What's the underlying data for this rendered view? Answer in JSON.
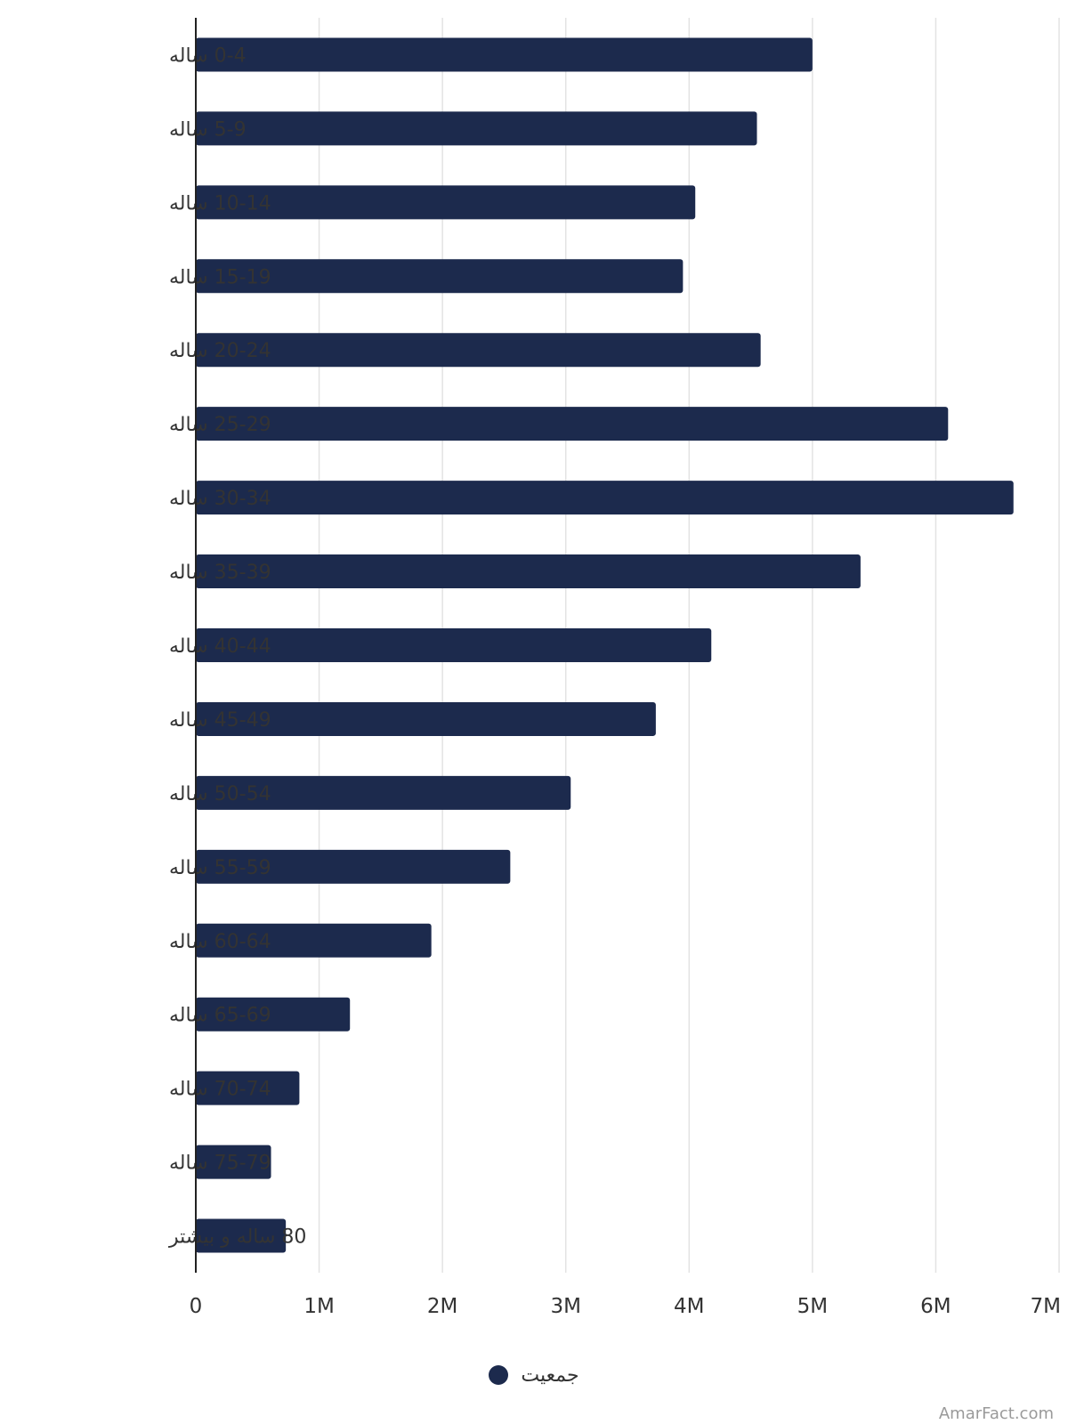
{
  "colors": {
    "bar": "#1c2a4d",
    "grid": "#e3e3e3",
    "axis": "#222222"
  },
  "chart_data": {
    "type": "bar",
    "orientation": "horizontal",
    "categories": [
      "0-4 ساله",
      "5-9 ساله",
      "10-14 ساله",
      "15-19 ساله",
      "20-24 ساله",
      "25-29 ساله",
      "30-34 ساله",
      "35-39 ساله",
      "40-44 ساله",
      "45-49 ساله",
      "50-54 ساله",
      "55-59 ساله",
      "60-64 ساله",
      "65-69 ساله",
      "70-74 ساله",
      "75-79 ساله",
      "80 ساله و بیشتر"
    ],
    "series": [
      {
        "name": "جمعیت",
        "values": [
          5000000,
          4550000,
          4050000,
          3950000,
          4580000,
          6100000,
          6630000,
          5390000,
          4180000,
          3730000,
          3040000,
          2550000,
          1910000,
          1250000,
          840000,
          610000,
          730000
        ]
      }
    ],
    "xlim": [
      0,
      7000000
    ],
    "xticks": [
      "0",
      "1M",
      "2M",
      "3M",
      "4M",
      "5M",
      "6M",
      "7M"
    ],
    "grid": true,
    "legend_position": "bottom"
  },
  "legend": {
    "label": "جمعیت"
  },
  "watermark": "AmarFact.com"
}
